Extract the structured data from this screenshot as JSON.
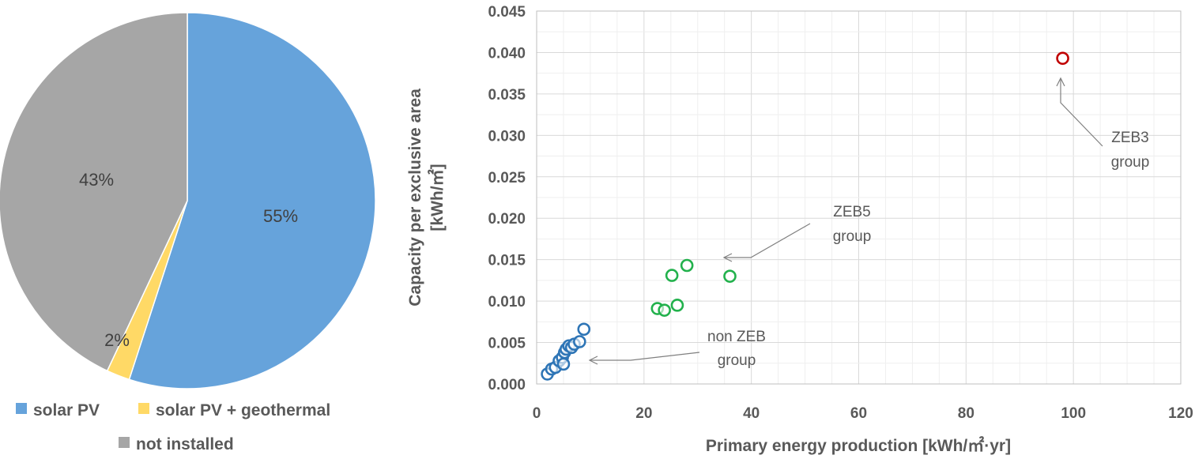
{
  "chart_data": [
    {
      "type": "pie",
      "slices": [
        {
          "label": "solar PV",
          "value": 55,
          "display": "55%",
          "color": "#66a3db"
        },
        {
          "label": "solar PV + geothermal",
          "value": 2,
          "display": "2%",
          "color": "#ffd966"
        },
        {
          "label": "not installed",
          "value": 43,
          "display": "43%",
          "color": "#a6a6a6"
        }
      ],
      "legend_position": "bottom"
    },
    {
      "type": "scatter",
      "xlabel": "Primary energy production [kWh/㎡·yr]",
      "ylabel_line1": "Capacity per exclusive area",
      "ylabel_line2": "[kWh/㎡]",
      "xlim": [
        0,
        120
      ],
      "ylim": [
        0,
        0.045
      ],
      "xticks": [
        "0",
        "20",
        "40",
        "60",
        "80",
        "100",
        "120"
      ],
      "yticks": [
        "0.000",
        "0.005",
        "0.010",
        "0.015",
        "0.020",
        "0.025",
        "0.030",
        "0.035",
        "0.040",
        "0.045"
      ],
      "grid": true,
      "series": [
        {
          "color": "#2e75b6",
          "points": [
            [
              2.0,
              0.0012
            ],
            [
              2.8,
              0.0018
            ],
            [
              3.5,
              0.002
            ],
            [
              4.2,
              0.0028
            ],
            [
              4.8,
              0.0032
            ],
            [
              5.0,
              0.0024
            ],
            [
              5.2,
              0.0038
            ],
            [
              5.5,
              0.0042
            ],
            [
              6.0,
              0.0046
            ],
            [
              6.5,
              0.0044
            ],
            [
              7.0,
              0.0048
            ],
            [
              8.0,
              0.0051
            ],
            [
              8.8,
              0.0066
            ]
          ]
        },
        {
          "color": "#22b14c",
          "points": [
            [
              22.5,
              0.0091
            ],
            [
              23.8,
              0.0089
            ],
            [
              25.2,
              0.0131
            ],
            [
              26.2,
              0.0095
            ],
            [
              28.0,
              0.0143
            ],
            [
              36.0,
              0.013
            ]
          ]
        },
        {
          "color": "#c00000",
          "points": [
            [
              98.0,
              0.0393
            ]
          ]
        }
      ],
      "annotations": [
        {
          "line1": "ZEB3",
          "line2": "group"
        },
        {
          "line1": "ZEB5",
          "line2": "group"
        },
        {
          "line1": "non ZEB",
          "line2": "group"
        }
      ]
    }
  ]
}
